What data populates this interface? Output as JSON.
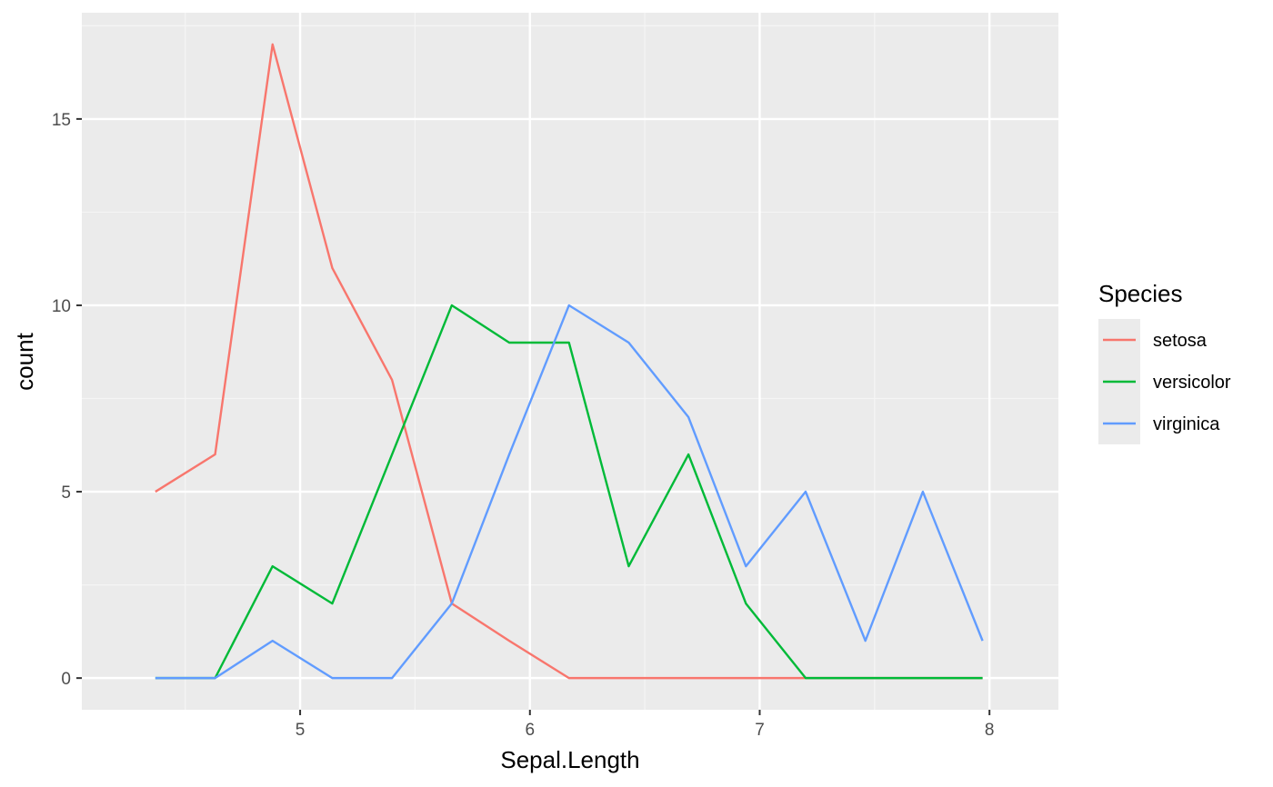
{
  "chart_data": {
    "type": "line",
    "xlabel": "Sepal.Length",
    "ylabel": "count",
    "xlim": [
      4.05,
      8.3
    ],
    "ylim": [
      -0.85,
      17.85
    ],
    "x_ticks": [
      5,
      6,
      7,
      8
    ],
    "x_tick_labels": [
      "5",
      "6",
      "7",
      "8"
    ],
    "y_ticks": [
      0,
      5,
      10,
      15
    ],
    "y_tick_labels": [
      "0",
      "5",
      "10",
      "15"
    ],
    "grid": true,
    "legend": {
      "title": "Species",
      "position": "right"
    },
    "x": [
      4.37,
      4.63,
      4.88,
      5.14,
      5.4,
      5.66,
      5.91,
      6.17,
      6.43,
      6.69,
      6.94,
      7.2,
      7.46,
      7.71,
      7.97
    ],
    "series": [
      {
        "name": "setosa",
        "color": "#F8766D",
        "values": [
          5,
          6,
          17,
          11,
          8,
          2,
          1,
          0,
          0,
          0,
          0,
          0,
          0,
          0,
          0
        ]
      },
      {
        "name": "versicolor",
        "color": "#00BA38",
        "values": [
          0,
          0,
          3,
          2,
          6,
          10,
          9,
          9,
          3,
          6,
          2,
          0,
          0,
          0,
          0
        ]
      },
      {
        "name": "virginica",
        "color": "#619CFF",
        "values": [
          0,
          0,
          1,
          0,
          0,
          2,
          6,
          10,
          9,
          7,
          3,
          5,
          1,
          5,
          1
        ]
      }
    ]
  }
}
